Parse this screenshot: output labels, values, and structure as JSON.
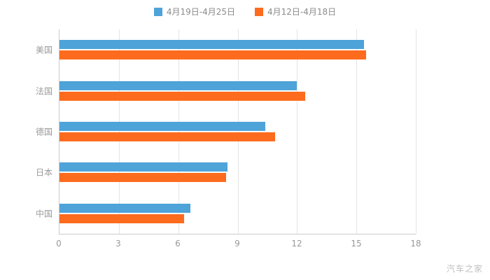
{
  "chart_data": {
    "type": "bar",
    "orientation": "horizontal",
    "categories": [
      "美国",
      "法国",
      "德国",
      "日本",
      "中国"
    ],
    "series": [
      {
        "name": "4月19日-4月25日",
        "color": "#4ea3d9",
        "values": [
          15.4,
          12.0,
          10.4,
          8.5,
          6.6
        ]
      },
      {
        "name": "4月12日-4月18日",
        "color": "#fd6c1e",
        "values": [
          15.5,
          12.4,
          10.9,
          8.4,
          6.3
        ]
      }
    ],
    "xticks": [
      0,
      3,
      6,
      9,
      12,
      15,
      18
    ],
    "xlim": [
      0,
      18
    ],
    "grid": true,
    "legend_position": "top",
    "title": "",
    "xlabel": "",
    "ylabel": ""
  },
  "watermark": "汽车之家",
  "colors": {
    "series1": "#4ea3d9",
    "series2": "#fd6c1e",
    "axis": "#cccccc",
    "gridline": "#e4e4e4",
    "label": "#999999",
    "watermark": "#bfbfbf",
    "background": "#ffffff"
  }
}
